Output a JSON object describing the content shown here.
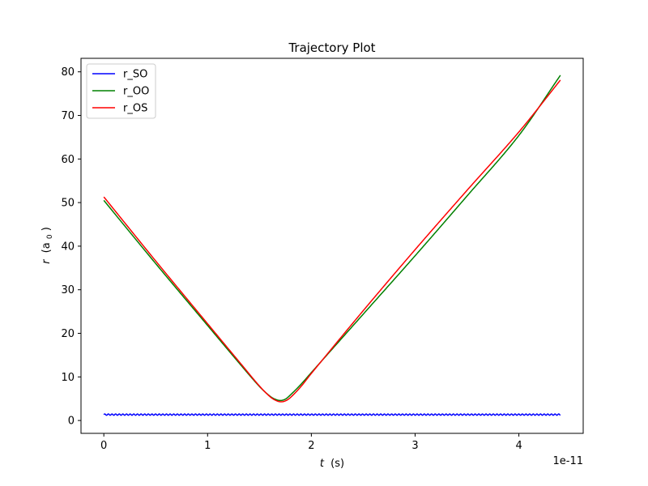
{
  "chart_data": {
    "type": "line",
    "title": "Trajectory Plot",
    "xlabel_symbol": "t",
    "xlabel_unit": "(s)",
    "ylabel_symbol": "r",
    "ylabel_unit_open": "(a",
    "ylabel_unit_sub": "0",
    "ylabel_unit_close": ")",
    "x_offset_text": "1e-11",
    "xlim": [
      -0.22,
      4.62
    ],
    "ylim": [
      -2.95,
      83.1
    ],
    "x_ticks": [
      0,
      1,
      2,
      3,
      4
    ],
    "y_ticks": [
      0,
      10,
      20,
      30,
      40,
      50,
      60,
      70,
      80
    ],
    "legend_position": "upper-left",
    "series": [
      {
        "name": "r_SO",
        "color": "#0000ff",
        "oscillating": true,
        "baseline": 1.35,
        "amplitude": 0.15,
        "period": 0.035,
        "x": [
          0,
          4.4
        ],
        "y": [
          1.35,
          1.35
        ]
      },
      {
        "name": "r_OO",
        "color": "#008000",
        "x": [
          0,
          0.5,
          1.0,
          1.3,
          1.5,
          1.6,
          1.65,
          1.7,
          1.75,
          1.8,
          1.9,
          2.0,
          2.5,
          3.0,
          3.5,
          4.0,
          4.4
        ],
        "y": [
          50.5,
          36.0,
          21.8,
          13.3,
          7.8,
          5.6,
          4.9,
          4.6,
          4.9,
          5.9,
          8.3,
          11.0,
          24.4,
          37.8,
          51.5,
          65.4,
          79.2
        ]
      },
      {
        "name": "r_OS",
        "color": "#ff0000",
        "x": [
          0,
          0.5,
          1.0,
          1.3,
          1.5,
          1.6,
          1.65,
          1.7,
          1.75,
          1.8,
          1.9,
          2.0,
          2.5,
          3.0,
          3.5,
          4.0,
          4.4
        ],
        "y": [
          51.3,
          36.6,
          22.2,
          13.6,
          7.9,
          5.5,
          4.7,
          4.3,
          4.5,
          5.3,
          7.8,
          10.8,
          25.2,
          39.2,
          52.8,
          66.2,
          78.1
        ]
      }
    ]
  }
}
